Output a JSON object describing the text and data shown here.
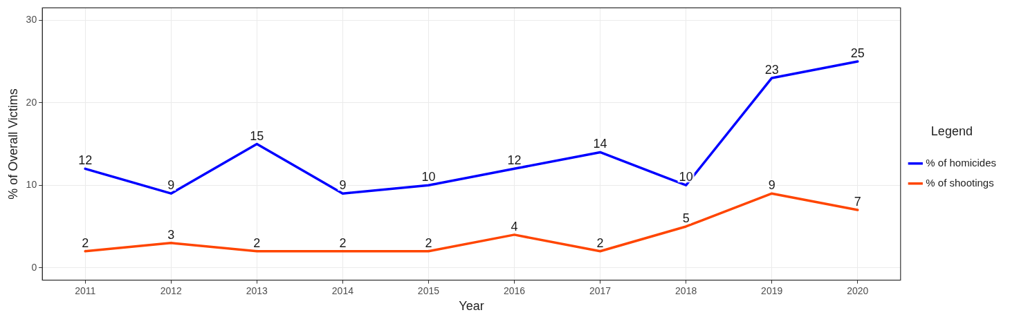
{
  "chart_data": {
    "type": "line",
    "xlabel": "Year",
    "ylabel": "% of Overall Victims",
    "legend_title": "Legend",
    "categories": [
      "2011",
      "2012",
      "2013",
      "2014",
      "2015",
      "2016",
      "2017",
      "2018",
      "2019",
      "2020"
    ],
    "series": [
      {
        "name": "% of homicides",
        "color": "#0000ff",
        "values": [
          12,
          9,
          15,
          9,
          10,
          12,
          14,
          10,
          23,
          25
        ]
      },
      {
        "name": "% of shootings",
        "color": "#ff4500",
        "values": [
          2,
          3,
          2,
          2,
          2,
          4,
          2,
          5,
          9,
          7
        ]
      }
    ],
    "ylim": [
      -1.5,
      31.5
    ],
    "yticks": [
      0,
      10,
      20,
      30
    ],
    "grid": true,
    "legend": "right",
    "data_labels": true,
    "marker": "none",
    "line_style": "solid"
  }
}
